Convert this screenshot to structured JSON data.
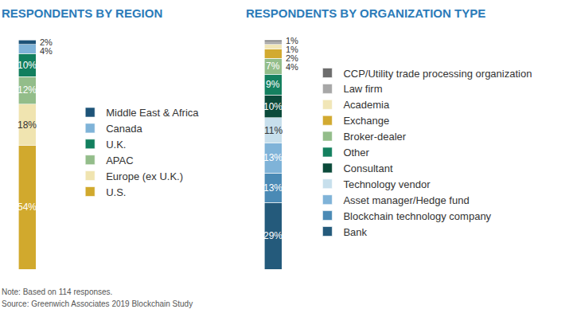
{
  "chart_data": [
    {
      "type": "bar",
      "title": "RESPONDENTS BY REGION",
      "stacked": true,
      "data_labels": true,
      "legend": "right",
      "tick_labels": false,
      "ylim": [
        0,
        100
      ],
      "categories": [
        null
      ],
      "series": [
        {
          "name": "U.S.",
          "color": "#d1a92d",
          "values": [
            54
          ],
          "value_labels": [
            "54%"
          ]
        },
        {
          "name": "Europe (ex U.K.)",
          "color": "#f0e4b0",
          "values": [
            18
          ],
          "value_labels": [
            "18%"
          ]
        },
        {
          "name": "APAC",
          "color": "#93bd8a",
          "values": [
            12
          ],
          "value_labels": [
            "12%"
          ]
        },
        {
          "name": "U.K.",
          "color": "#127f5e",
          "values": [
            10
          ],
          "value_labels": [
            "10%"
          ]
        },
        {
          "name": "Canada",
          "color": "#7fb3d8",
          "values": [
            4
          ],
          "value_labels": [
            "4%"
          ]
        },
        {
          "name": "Middle East & Africa",
          "color": "#1d5378",
          "values": [
            2
          ],
          "value_labels": [
            "2%"
          ]
        }
      ]
    },
    {
      "type": "bar",
      "title": "RESPONDENTS BY ORGANIZATION TYPE",
      "stacked": true,
      "data_labels": true,
      "legend": "right",
      "tick_labels": false,
      "ylim": [
        0,
        100
      ],
      "categories": [
        null
      ],
      "series": [
        {
          "name": "Bank",
          "color": "#245a7b",
          "values": [
            29
          ],
          "value_labels": [
            "29%"
          ]
        },
        {
          "name": "Blockchain technology company",
          "color": "#4a8ab5",
          "values": [
            13
          ],
          "value_labels": [
            "13%"
          ]
        },
        {
          "name": "Asset manager/Hedge fund",
          "color": "#7fb3d8",
          "values": [
            13
          ],
          "value_labels": [
            "13%"
          ]
        },
        {
          "name": "Technology vendor",
          "color": "#c7dfec",
          "values": [
            11
          ],
          "value_labels": [
            "11%"
          ]
        },
        {
          "name": "Consultant",
          "color": "#0b4a3a",
          "values": [
            10
          ],
          "value_labels": [
            "10%"
          ]
        },
        {
          "name": "Other",
          "color": "#14805f",
          "values": [
            9
          ],
          "value_labels": [
            "9%"
          ]
        },
        {
          "name": "Broker-dealer",
          "color": "#93bd8a",
          "values": [
            7
          ],
          "value_labels": [
            "7%"
          ]
        },
        {
          "name": "Exchange",
          "color": "#d2aa30",
          "values": [
            4
          ],
          "value_labels": [
            "4%"
          ]
        },
        {
          "name": "Academia",
          "color": "#f1e6b7",
          "values": [
            2
          ],
          "value_labels": [
            "2%"
          ]
        },
        {
          "name": "Law firm",
          "color": "#a7a7a7",
          "values": [
            1
          ],
          "value_labels": [
            "1%"
          ]
        },
        {
          "name": "CCP/Utility trade processing organization",
          "color": "#6d6d6d",
          "values": [
            1
          ],
          "value_labels": [
            "1%"
          ]
        }
      ]
    }
  ],
  "note": "Note: Based on 114 responses.",
  "source": "Source: Greenwich Associates 2019 Blockchain Study"
}
